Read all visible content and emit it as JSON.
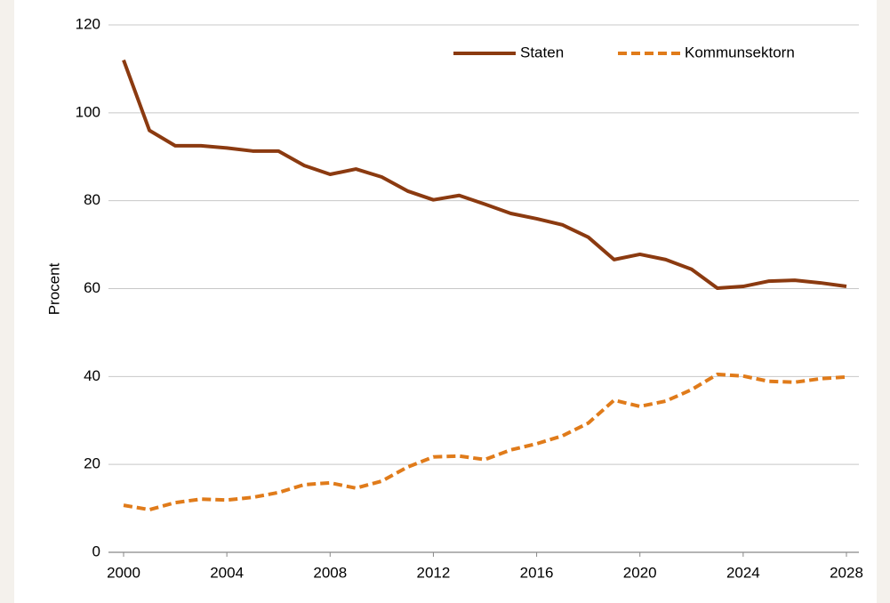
{
  "chart_data": {
    "type": "line",
    "y_label": "Procent",
    "x": [
      2000,
      2001,
      2002,
      2003,
      2004,
      2005,
      2006,
      2007,
      2008,
      2009,
      2010,
      2011,
      2012,
      2013,
      2014,
      2015,
      2016,
      2017,
      2018,
      2019,
      2020,
      2021,
      2022,
      2023,
      2024,
      2025,
      2026,
      2027,
      2028
    ],
    "xlim": [
      2000,
      2028
    ],
    "xticks": [
      2000,
      2004,
      2008,
      2012,
      2016,
      2020,
      2024,
      2028
    ],
    "ylim": [
      0,
      120
    ],
    "yticks": [
      0,
      20,
      40,
      60,
      80,
      100,
      120
    ],
    "grid": true,
    "legend": "top-right",
    "series": [
      {
        "name": "Staten",
        "color": "#8b3a10",
        "dash": false,
        "values": [
          112,
          96,
          92.5,
          92.5,
          92,
          91.3,
          91.3,
          88,
          86,
          87.2,
          85.4,
          82.2,
          80.2,
          81.2,
          79.2,
          77.1,
          75.9,
          74.5,
          71.7,
          66.6,
          67.8,
          66.6,
          64.4,
          60.1,
          60.5,
          61.7,
          61.9,
          61.3,
          60.5
        ]
      },
      {
        "name": "Kommunsektorn",
        "color": "#e07b1a",
        "dash": true,
        "values": [
          10.7,
          9.7,
          11.3,
          12.1,
          11.9,
          12.5,
          13.6,
          15.4,
          15.8,
          14.6,
          16.2,
          19.4,
          21.7,
          21.9,
          21.1,
          23.3,
          24.7,
          26.5,
          29.4,
          34.6,
          33.2,
          34.4,
          37,
          40.5,
          40.1,
          38.9,
          38.7,
          39.5,
          39.9
        ]
      }
    ]
  }
}
